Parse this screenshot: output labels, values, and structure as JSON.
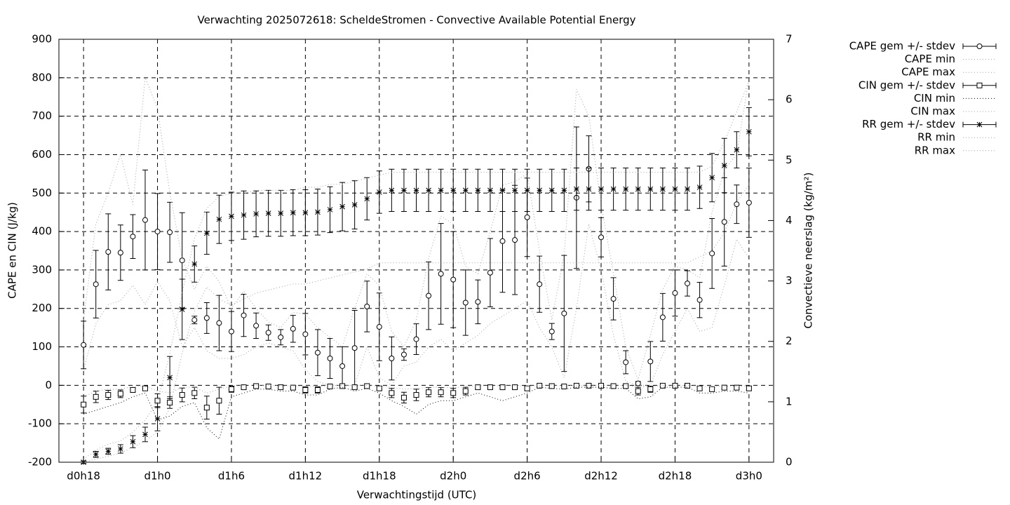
{
  "chart_data": {
    "type": "errorbar",
    "title": "Verwachting 2025072618: ScheldeStromen - Convective Available Potential Energy",
    "xlabel": "Verwachtingstijd (UTC)",
    "ylabel": "CAPE en CIN (J/kg)",
    "y2label": "Convectieve neerslag (kg/m²)",
    "x": [
      18,
      19,
      20,
      21,
      22,
      23,
      24,
      25,
      26,
      27,
      28,
      29,
      30,
      31,
      32,
      33,
      34,
      35,
      36,
      37,
      38,
      39,
      40,
      41,
      42,
      43,
      44,
      45,
      46,
      47,
      48,
      49,
      50,
      51,
      52,
      53,
      54,
      55,
      56,
      57,
      58,
      59,
      60,
      61,
      62,
      63,
      64,
      65,
      66,
      67,
      68,
      69,
      70,
      71,
      72
    ],
    "xlim": [
      16,
      74
    ],
    "xticks": [
      {
        "value": 18,
        "label": "d0h18"
      },
      {
        "value": 24,
        "label": "d1h0"
      },
      {
        "value": 30,
        "label": "d1h6"
      },
      {
        "value": 36,
        "label": "d1h12"
      },
      {
        "value": 42,
        "label": "d1h18"
      },
      {
        "value": 48,
        "label": "d2h0"
      },
      {
        "value": 54,
        "label": "d2h6"
      },
      {
        "value": 60,
        "label": "d2h12"
      },
      {
        "value": 66,
        "label": "d2h18"
      },
      {
        "value": 72,
        "label": "d3h0"
      }
    ],
    "ylim": [
      -200,
      900
    ],
    "yticks": [
      -200,
      -100,
      0,
      100,
      200,
      300,
      400,
      500,
      600,
      700,
      800,
      900
    ],
    "y2lim": [
      0,
      7
    ],
    "y2ticks": [
      0,
      1,
      2,
      3,
      4,
      5,
      6,
      7
    ],
    "grid": true,
    "legend": "right",
    "series": [
      {
        "name": "CAPE gem +/- stdev",
        "style": "errorbar",
        "marker": "circle",
        "color": "#000000",
        "values": [
          105,
          263,
          347,
          345,
          387,
          430,
          400,
          398,
          325,
          170,
          175,
          162,
          140,
          182,
          155,
          137,
          125,
          147,
          133,
          85,
          70,
          50,
          97,
          205,
          152,
          70,
          80,
          120,
          233,
          290,
          275,
          215,
          217,
          293,
          375,
          378,
          437,
          263,
          140,
          187,
          488,
          563,
          385,
          225,
          60,
          5,
          62,
          177,
          240,
          265,
          222,
          343,
          425,
          471,
          475
        ],
        "errors": [
          62,
          88,
          99,
          72,
          57,
          130,
          99,
          78,
          124,
          10,
          40,
          72,
          52,
          55,
          33,
          20,
          20,
          35,
          54,
          60,
          52,
          50,
          98,
          66,
          88,
          56,
          15,
          40,
          88,
          131,
          125,
          85,
          57,
          89,
          133,
          142,
          102,
          73,
          21,
          151,
          184,
          86,
          51,
          55,
          30,
          5,
          52,
          62,
          60,
          33,
          46,
          91,
          115,
          50,
          90
        ]
      },
      {
        "name": "CAPE min",
        "style": "dotted",
        "color": "#a0a0a0",
        "values": [
          40,
          160,
          210,
          220,
          260,
          210,
          270,
          220,
          100,
          150,
          90,
          70,
          70,
          80,
          100,
          110,
          100,
          90,
          40,
          10,
          0,
          0,
          0,
          100,
          20,
          0,
          50,
          60,
          100,
          120,
          90,
          110,
          130,
          160,
          180,
          200,
          220,
          150,
          100,
          20,
          200,
          420,
          300,
          130,
          10,
          0,
          0,
          80,
          140,
          200,
          140,
          150,
          260,
          380,
          330
        ]
      },
      {
        "name": "CAPE max",
        "style": "dotted",
        "color": "#a0a0a0",
        "values": [
          170,
          420,
          500,
          600,
          470,
          800,
          720,
          500,
          330,
          250,
          310,
          270,
          200,
          245,
          200,
          165,
          150,
          190,
          185,
          150,
          125,
          100,
          200,
          290,
          260,
          140,
          100,
          170,
          330,
          440,
          420,
          310,
          290,
          400,
          520,
          530,
          550,
          350,
          170,
          340,
          770,
          700,
          470,
          290,
          100,
          15,
          130,
          250,
          310,
          300,
          280,
          450,
          560,
          600,
          800
        ]
      },
      {
        "name": "CIN gem +/- stdev",
        "style": "errorbar",
        "marker": "square",
        "color": "#000000",
        "values": [
          -50,
          -30,
          -25,
          -22,
          -12,
          -8,
          -40,
          -45,
          -25,
          -20,
          -58,
          -40,
          -10,
          -5,
          -2,
          -3,
          -5,
          -6,
          -12,
          -12,
          -3,
          -2,
          -5,
          -2,
          -8,
          -20,
          -32,
          -25,
          -18,
          -18,
          -20,
          -15,
          -5,
          -5,
          -5,
          -5,
          -8,
          -1,
          -2,
          -3,
          -1,
          -1,
          -1,
          -2,
          -2,
          -15,
          -10,
          -1,
          -1,
          -1,
          -8,
          -10,
          -6,
          -6,
          -8
        ],
        "errors": [
          22,
          15,
          12,
          10,
          6,
          5,
          18,
          15,
          18,
          15,
          30,
          35,
          8,
          4,
          2,
          2,
          3,
          3,
          8,
          8,
          3,
          2,
          4,
          2,
          5,
          12,
          14,
          15,
          12,
          12,
          12,
          10,
          4,
          4,
          4,
          4,
          5,
          1,
          2,
          2,
          1,
          1,
          1,
          2,
          2,
          10,
          8,
          1,
          1,
          1,
          5,
          5,
          4,
          4,
          5
        ]
      },
      {
        "name": "CIN min",
        "style": "dotted",
        "color": "#000000",
        "values": [
          -75,
          -65,
          -55,
          -45,
          -30,
          -20,
          -90,
          -80,
          -55,
          -45,
          -110,
          -140,
          -30,
          -20,
          -10,
          -10,
          -15,
          -15,
          -25,
          -25,
          -10,
          -5,
          -15,
          -8,
          -20,
          -40,
          -55,
          -75,
          -50,
          -40,
          -40,
          -30,
          -20,
          -30,
          -40,
          -30,
          -20,
          -5,
          -8,
          -10,
          -5,
          -5,
          -5,
          -8,
          -8,
          -35,
          -30,
          -5,
          -5,
          -5,
          -20,
          -20,
          -15,
          -15,
          -20
        ]
      },
      {
        "name": "CIN max",
        "style": "dotted",
        "color": "#a0a0a0",
        "values": [
          -30,
          -15,
          -10,
          -10,
          -3,
          -2,
          -15,
          -20,
          -5,
          -5,
          -20,
          -10,
          -2,
          0,
          0,
          0,
          -1,
          -1,
          -3,
          -3,
          0,
          0,
          -1,
          0,
          -2,
          -5,
          -10,
          -8,
          -5,
          -5,
          -6,
          -4,
          -1,
          -1,
          -1,
          -1,
          -2,
          0,
          0,
          -1,
          0,
          0,
          0,
          0,
          0,
          -4,
          -3,
          0,
          0,
          0,
          -2,
          -3,
          -2,
          -2,
          -2
        ]
      },
      {
        "name": "RR gem +/- stdev",
        "style": "errorbar",
        "marker": "star",
        "color": "#000000",
        "axis": "y2",
        "values": [
          0.0,
          0.13,
          0.18,
          0.22,
          0.34,
          0.46,
          0.72,
          1.4,
          2.53,
          3.28,
          3.79,
          4.02,
          4.07,
          4.09,
          4.11,
          4.12,
          4.12,
          4.13,
          4.13,
          4.14,
          4.18,
          4.23,
          4.26,
          4.36,
          4.47,
          4.5,
          4.5,
          4.5,
          4.5,
          4.5,
          4.5,
          4.5,
          4.5,
          4.5,
          4.5,
          4.5,
          4.5,
          4.5,
          4.5,
          4.5,
          4.52,
          4.52,
          4.52,
          4.52,
          4.52,
          4.52,
          4.52,
          4.52,
          4.52,
          4.52,
          4.55,
          4.71,
          4.91,
          5.17,
          5.47
        ],
        "errors": [
          0.02,
          0.05,
          0.05,
          0.07,
          0.1,
          0.12,
          0.2,
          0.35,
          0.5,
          0.3,
          0.35,
          0.4,
          0.4,
          0.4,
          0.38,
          0.38,
          0.38,
          0.38,
          0.38,
          0.38,
          0.38,
          0.4,
          0.4,
          0.35,
          0.35,
          0.35,
          0.35,
          0.35,
          0.35,
          0.35,
          0.35,
          0.35,
          0.35,
          0.35,
          0.35,
          0.35,
          0.35,
          0.35,
          0.35,
          0.35,
          0.35,
          0.35,
          0.35,
          0.35,
          0.35,
          0.35,
          0.35,
          0.35,
          0.35,
          0.35,
          0.35,
          0.4,
          0.45,
          0.3,
          0.4
        ]
      },
      {
        "name": "RR min",
        "style": "dotted",
        "color": "#a0a0a0",
        "axis": "y2",
        "values": [
          0,
          0.05,
          0.1,
          0.15,
          0.25,
          0.35,
          0.5,
          0.9,
          1.8,
          2.5,
          2.9,
          2.7,
          2.6,
          2.7,
          2.8,
          2.85,
          2.9,
          2.95,
          2.95,
          3.0,
          3.05,
          3.1,
          3.15,
          3.2,
          3.3,
          3.3,
          3.3,
          3.3,
          3.3,
          3.3,
          3.3,
          3.3,
          3.3,
          3.3,
          3.3,
          3.3,
          3.3,
          3.3,
          3.3,
          3.3,
          3.3,
          3.3,
          3.3,
          3.3,
          3.3,
          3.3,
          3.3,
          3.3,
          3.3,
          3.3,
          3.4,
          3.5,
          3.8,
          4.3,
          4.6
        ]
      },
      {
        "name": "RR max",
        "style": "dotted",
        "color": "#a0a0a0",
        "axis": "y2",
        "values": [
          0.05,
          0.2,
          0.3,
          0.35,
          0.5,
          0.7,
          1.0,
          1.8,
          2.8,
          3.7,
          4.2,
          4.4,
          4.45,
          4.45,
          4.5,
          4.5,
          4.5,
          4.5,
          4.55,
          4.55,
          4.6,
          4.6,
          4.65,
          4.7,
          4.75,
          4.8,
          4.8,
          4.8,
          4.8,
          4.8,
          4.8,
          4.8,
          4.8,
          4.8,
          4.8,
          4.8,
          4.8,
          4.8,
          4.8,
          4.8,
          4.8,
          4.8,
          4.8,
          4.8,
          4.8,
          4.8,
          4.8,
          4.8,
          4.8,
          4.8,
          4.8,
          4.9,
          5.3,
          5.8,
          6.3
        ]
      }
    ]
  }
}
